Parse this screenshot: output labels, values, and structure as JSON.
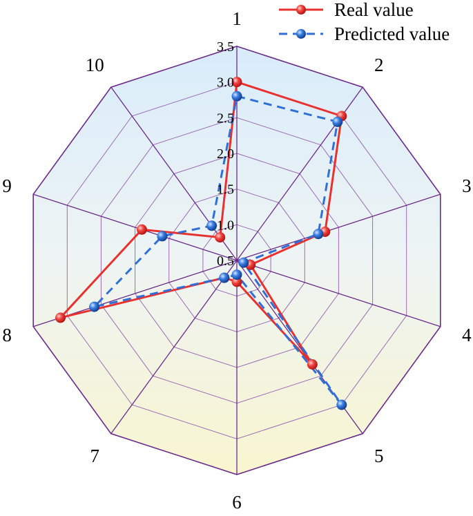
{
  "chart_data": {
    "type": "radar",
    "categories": [
      "1",
      "2",
      "3",
      "4",
      "5",
      "6",
      "7",
      "8",
      "9",
      "10"
    ],
    "rlim": [
      0.5,
      3.5
    ],
    "r_ticks": [
      "0.5",
      "1.0",
      "1.5",
      "2.0",
      "2.5",
      "3.0",
      "3.5"
    ],
    "grid": true,
    "legend_position": "top-right",
    "series": [
      {
        "name": "Real value",
        "color": "#e8312f",
        "line_style": "solid",
        "values": [
          3.0,
          3.0,
          1.8,
          0.7,
          2.3,
          0.8,
          0.8,
          3.1,
          1.9,
          0.9
        ]
      },
      {
        "name": "Predicted value",
        "color": "#2f6fd6",
        "line_style": "dashed",
        "values": [
          2.8,
          2.9,
          1.7,
          0.6,
          3.0,
          0.7,
          0.8,
          2.6,
          1.6,
          1.1
        ]
      }
    ]
  }
}
